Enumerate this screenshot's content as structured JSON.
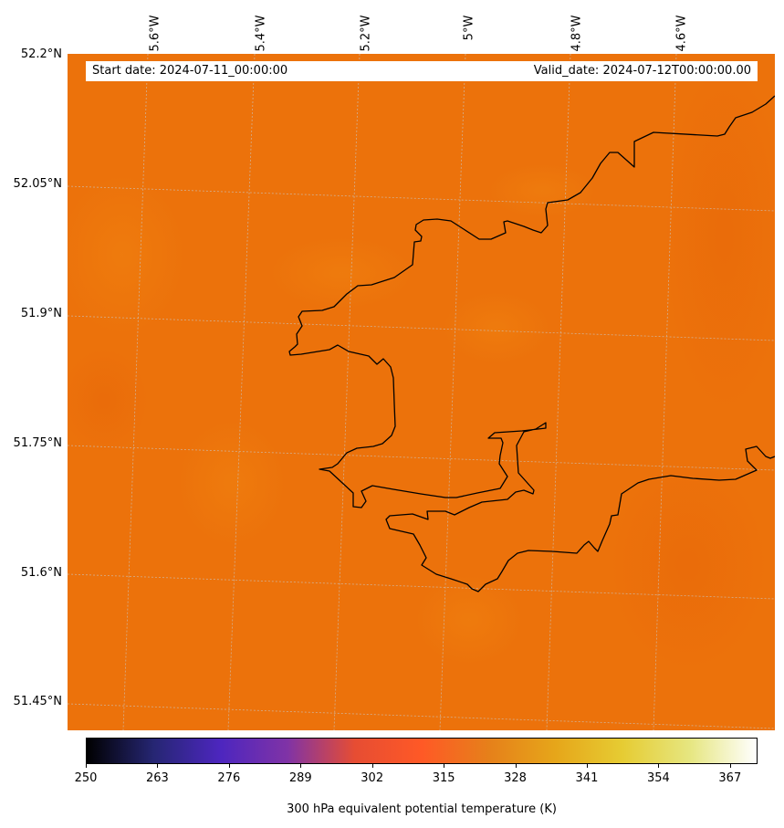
{
  "map": {
    "start_date": "Start date: 2024-07-11_00:00:00",
    "valid_date": "Valid_date: 2024-07-12T00:00:00.00",
    "lon_labels": [
      "5.6°W",
      "5.4°W",
      "5.2°W",
      "5°W",
      "4.8°W",
      "4.6°W"
    ],
    "lat_labels": [
      "52.2°N",
      "52.05°N",
      "51.9°N",
      "51.75°N",
      "51.6°N",
      "51.45°N"
    ],
    "field_color": "#ec720b",
    "coastline_color": "#000000",
    "gridline_color": "#c8c8c8"
  },
  "colorbar": {
    "label": "300 hPa equivalent potential temperature (K)",
    "ticks": [
      "250",
      "263",
      "276",
      "289",
      "302",
      "315",
      "328",
      "341",
      "354",
      "367"
    ],
    "range": [
      250,
      372
    ],
    "colormap": "CMRmap",
    "colors": [
      "#000000",
      "#262673",
      "#4d26bf",
      "#8033a6",
      "#e64d33",
      "#ff5926",
      "#e6801a",
      "#e6a61a",
      "#e6cc33",
      "#e6e680",
      "#ffffff"
    ]
  }
}
